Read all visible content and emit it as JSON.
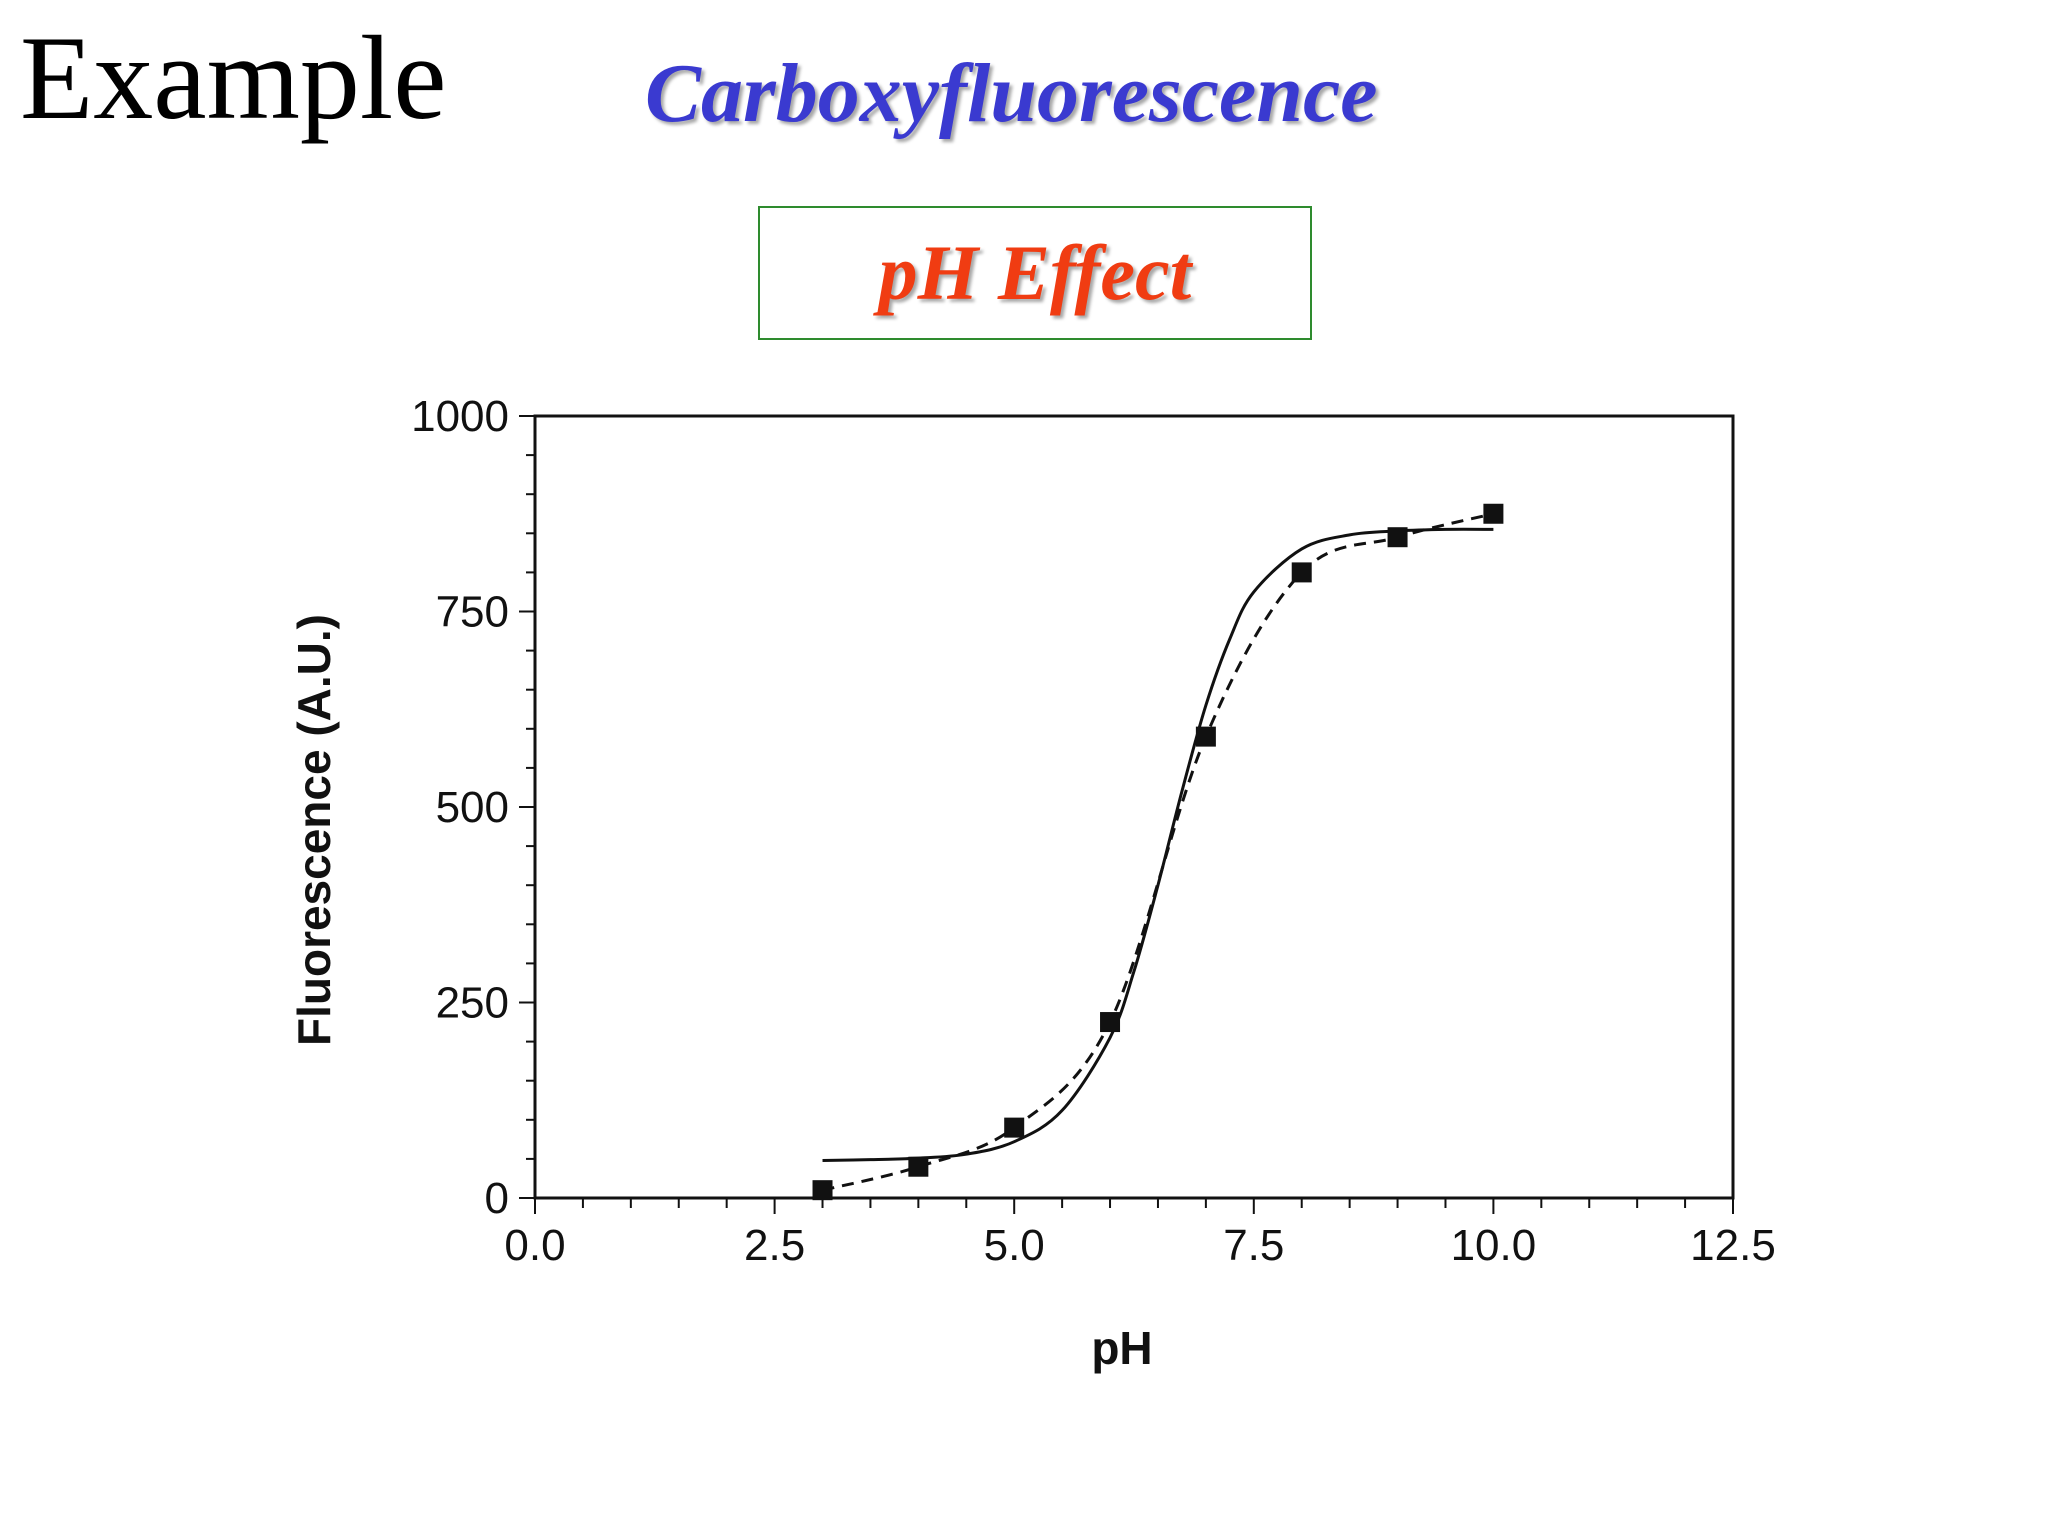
{
  "slide": {
    "heading_word": "Example",
    "title": "Carboxyfluorescence",
    "label": "pH Effect"
  },
  "colors": {
    "title": "#3a3ad0",
    "label": "#f03c12",
    "label_border": "#2e8b2e",
    "plot": "#111111"
  },
  "chart_data": {
    "type": "scatter",
    "title": "",
    "xlabel": "pH",
    "ylabel": "Fluorescence (A.U.)",
    "xlim": [
      0,
      12.5
    ],
    "ylim": [
      0,
      1000
    ],
    "xticks": [
      "0.0",
      "2.5",
      "5.0",
      "7.5",
      "10.0",
      "12.5"
    ],
    "yticks": [
      "0",
      "250",
      "500",
      "750",
      "1000"
    ],
    "grid": false,
    "series": [
      {
        "style": "square markers joined by dashed line",
        "x": [
          3.0,
          4.0,
          5.0,
          6.0,
          7.0,
          8.0,
          9.0,
          10.0
        ],
        "y": [
          10,
          40,
          90,
          225,
          590,
          800,
          845,
          875
        ]
      },
      {
        "style": "solid sigmoidal fit curve",
        "x": [
          3.0,
          3.5,
          4.0,
          4.5,
          5.0,
          5.5,
          6.0,
          6.25,
          6.5,
          6.75,
          7.0,
          7.25,
          7.5,
          8.0,
          8.5,
          9.0,
          9.5,
          10.0
        ],
        "y": [
          48,
          49,
          51,
          56,
          72,
          112,
          205,
          290,
          400,
          520,
          630,
          715,
          775,
          830,
          848,
          853,
          855,
          855
        ]
      }
    ]
  }
}
